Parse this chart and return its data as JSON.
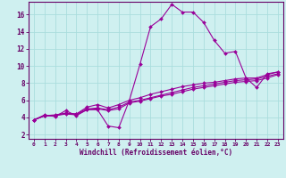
{
  "title": "",
  "xlabel": "Windchill (Refroidissement éolien,°C)",
  "ylabel": "",
  "bg_color": "#cff0f0",
  "line_color": "#990099",
  "grid_color": "#aadddd",
  "axis_color": "#660066",
  "tick_color": "#660066",
  "xlim": [
    -0.5,
    23.5
  ],
  "ylim": [
    1.5,
    17.5
  ],
  "yticks": [
    2,
    4,
    6,
    8,
    10,
    12,
    14,
    16
  ],
  "xticks": [
    0,
    1,
    2,
    3,
    4,
    5,
    6,
    7,
    8,
    9,
    10,
    11,
    12,
    13,
    14,
    15,
    16,
    17,
    18,
    19,
    20,
    21,
    22,
    23
  ],
  "series": [
    [
      0,
      3.7,
      1,
      4.3,
      2,
      4.1,
      3,
      4.8,
      4,
      4.2,
      5,
      4.9,
      6,
      4.9,
      7,
      3.0,
      8,
      2.8,
      9,
      6.0,
      10,
      10.2,
      11,
      14.6,
      12,
      15.5,
      13,
      17.2,
      14,
      16.3,
      15,
      16.3,
      16,
      15.1,
      17,
      13.0,
      18,
      11.5,
      19,
      11.7,
      20,
      8.6,
      21,
      7.5,
      22,
      9.1,
      23,
      9.3
    ],
    [
      0,
      3.7,
      1,
      4.2,
      2,
      4.2,
      3,
      4.5,
      4,
      4.4,
      5,
      5.2,
      6,
      5.5,
      7,
      5.1,
      8,
      5.5,
      9,
      6.0,
      10,
      6.3,
      11,
      6.7,
      12,
      7.0,
      13,
      7.3,
      14,
      7.6,
      15,
      7.8,
      16,
      8.0,
      17,
      8.1,
      18,
      8.3,
      19,
      8.5,
      20,
      8.6,
      21,
      8.6,
      22,
      9.0,
      23,
      9.3
    ],
    [
      0,
      3.7,
      1,
      4.2,
      2,
      4.3,
      3,
      4.5,
      4,
      4.4,
      5,
      5.0,
      6,
      5.1,
      7,
      4.9,
      8,
      5.2,
      9,
      5.8,
      10,
      6.0,
      11,
      6.3,
      12,
      6.6,
      13,
      6.9,
      14,
      7.2,
      15,
      7.5,
      16,
      7.7,
      17,
      7.9,
      18,
      8.1,
      19,
      8.3,
      20,
      8.4,
      21,
      8.5,
      22,
      8.8,
      23,
      9.1
    ],
    [
      0,
      3.7,
      1,
      4.2,
      2,
      4.2,
      3,
      4.4,
      4,
      4.3,
      5,
      4.9,
      6,
      5.0,
      7,
      4.8,
      8,
      5.0,
      9,
      5.7,
      10,
      5.9,
      11,
      6.2,
      12,
      6.5,
      13,
      6.7,
      14,
      7.0,
      15,
      7.3,
      16,
      7.5,
      17,
      7.7,
      18,
      7.9,
      19,
      8.1,
      20,
      8.2,
      21,
      8.3,
      22,
      8.6,
      23,
      9.0
    ]
  ],
  "marker_size": 2.0,
  "line_width": 0.8,
  "xlabel_fontsize": 5.5,
  "tick_fontsize_x": 4.5,
  "tick_fontsize_y": 5.5
}
